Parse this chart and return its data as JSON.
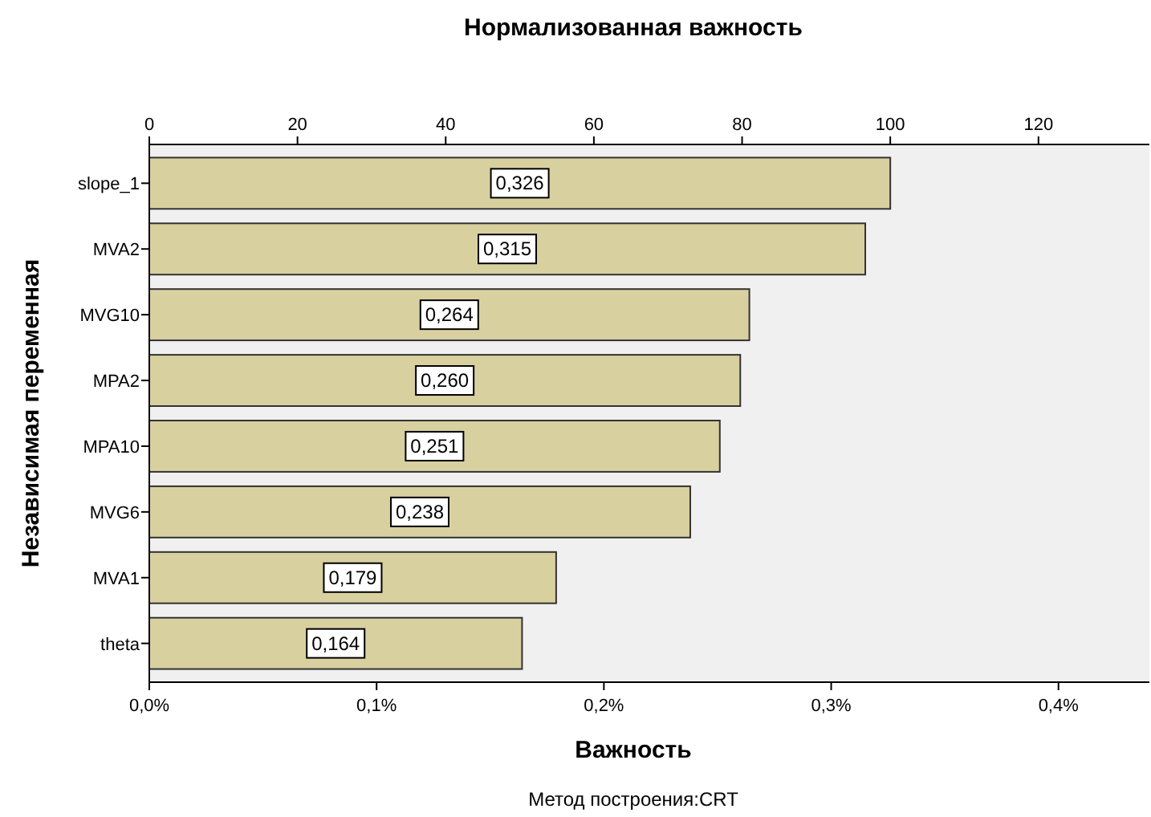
{
  "chart_data": {
    "type": "bar",
    "orientation": "horizontal",
    "x2label": "Нормализованная важность",
    "xlabel": "Важность",
    "ylabel": "Независимая переменная",
    "categories": [
      "slope_1",
      "MVA2",
      "MVG10",
      "MPA2",
      "MPA10",
      "MVG6",
      "MVA1",
      "theta"
    ],
    "values": [
      0.326,
      0.315,
      0.264,
      0.26,
      0.251,
      0.238,
      0.179,
      0.164
    ],
    "value_labels": [
      "0,326",
      "0,315",
      "0,264",
      "0,260",
      "0,251",
      "0,238",
      "0,179",
      "0,164"
    ],
    "color": "#d9d0a0",
    "xlim": [
      0,
      0.44
    ],
    "xticks": [
      {
        "value": 0,
        "label": "0,0%"
      },
      {
        "value": 0.1,
        "label": "0,1%"
      },
      {
        "value": 0.2,
        "label": "0,2%"
      },
      {
        "value": 0.3,
        "label": "0,3%"
      },
      {
        "value": 0.4,
        "label": "0,4%"
      }
    ],
    "x2lim": [
      0,
      134.97
    ],
    "x2ticks": [
      0,
      20,
      40,
      60,
      80,
      100,
      120
    ],
    "annotations": [
      "Метод построения:CRT"
    ],
    "grid": false
  }
}
